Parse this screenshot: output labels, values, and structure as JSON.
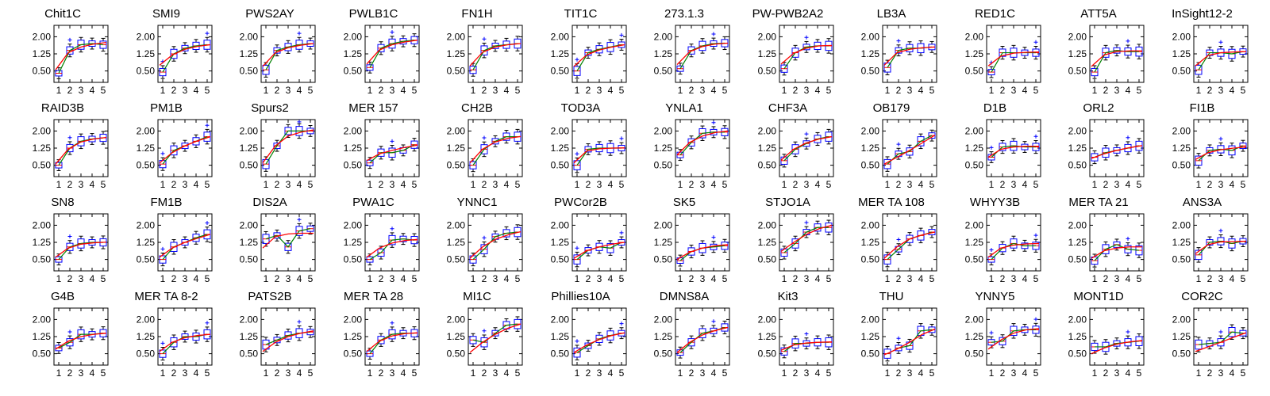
{
  "chart_data": {
    "type": "box",
    "ylim": [
      0.0,
      2.5
    ],
    "yticks": [
      "0.50",
      "1.25",
      "2.00"
    ],
    "ytick_values": [
      0.5,
      1.25,
      2.0
    ],
    "xticks": [
      "1",
      "2",
      "3",
      "4",
      "5"
    ],
    "colors": {
      "box": "#0000ff",
      "median": "#ff0000",
      "green_line": "#008000",
      "red_fit": "#ff0000",
      "whisker": "#000000",
      "outlier": "#0000ff"
    },
    "panels": [
      {
        "title": "Chit1C",
        "medians": [
          0.4,
          1.4,
          1.65,
          1.7,
          1.65
        ],
        "fit": [
          0.55,
          1.3,
          1.55,
          1.68,
          1.75
        ]
      },
      {
        "title": "SMI9",
        "medians": [
          0.45,
          1.25,
          1.5,
          1.6,
          1.65
        ],
        "fit": [
          0.75,
          1.2,
          1.45,
          1.58,
          1.65
        ]
      },
      {
        "title": "PWS2AY",
        "medians": [
          0.55,
          1.4,
          1.55,
          1.65,
          1.7
        ],
        "fit": [
          0.7,
          1.3,
          1.52,
          1.63,
          1.7
        ]
      },
      {
        "title": "PWLB1C",
        "medians": [
          0.65,
          1.5,
          1.7,
          1.8,
          1.85
        ],
        "fit": [
          0.8,
          1.42,
          1.65,
          1.77,
          1.85
        ]
      },
      {
        "title": "FN1H",
        "medians": [
          0.55,
          1.4,
          1.6,
          1.65,
          1.7
        ],
        "fit": [
          0.72,
          1.32,
          1.55,
          1.65,
          1.7
        ]
      },
      {
        "title": "TIT1C",
        "medians": [
          0.5,
          1.3,
          1.45,
          1.55,
          1.65
        ],
        "fit": [
          0.7,
          1.2,
          1.42,
          1.55,
          1.65
        ]
      },
      {
        "title": "273.1.3",
        "medians": [
          0.6,
          1.4,
          1.6,
          1.7,
          1.72
        ],
        "fit": [
          0.78,
          1.35,
          1.57,
          1.68,
          1.72
        ]
      },
      {
        "title": "PW-PWB2A2",
        "medians": [
          0.6,
          1.3,
          1.55,
          1.6,
          1.6
        ],
        "fit": [
          0.8,
          1.28,
          1.5,
          1.6,
          1.62
        ]
      },
      {
        "title": "LB3A",
        "medians": [
          0.65,
          1.4,
          1.5,
          1.5,
          1.55
        ],
        "fit": [
          0.75,
          1.3,
          1.45,
          1.52,
          1.55
        ]
      },
      {
        "title": "RED1C",
        "medians": [
          0.45,
          1.3,
          1.3,
          1.3,
          1.3
        ],
        "fit": [
          0.72,
          1.15,
          1.28,
          1.32,
          1.33
        ]
      },
      {
        "title": "ATT5A",
        "medians": [
          0.45,
          1.3,
          1.4,
          1.35,
          1.35
        ],
        "fit": [
          0.7,
          1.2,
          1.35,
          1.38,
          1.38
        ]
      },
      {
        "title": "InSight12-2",
        "medians": [
          0.55,
          1.3,
          1.3,
          1.25,
          1.35
        ],
        "fit": [
          0.72,
          1.18,
          1.3,
          1.33,
          1.35
        ]
      },
      {
        "title": "RAID3B",
        "medians": [
          0.5,
          1.25,
          1.55,
          1.65,
          1.7
        ],
        "fit": [
          0.55,
          1.2,
          1.52,
          1.65,
          1.72
        ]
      },
      {
        "title": "PM1B",
        "medians": [
          0.55,
          1.15,
          1.35,
          1.55,
          1.75
        ],
        "fit": [
          0.6,
          1.05,
          1.35,
          1.57,
          1.75
        ]
      },
      {
        "title": "Spurs2",
        "medians": [
          0.55,
          1.35,
          2.0,
          2.0,
          2.0
        ],
        "fit": [
          0.6,
          1.35,
          1.78,
          1.95,
          2.05
        ]
      },
      {
        "title": "MER 157",
        "medians": [
          0.6,
          1.05,
          1.05,
          1.15,
          1.4
        ],
        "fit": [
          0.7,
          1.0,
          1.15,
          1.28,
          1.38
        ]
      },
      {
        "title": "CH2B",
        "medians": [
          0.5,
          1.2,
          1.55,
          1.75,
          1.75
        ],
        "fit": [
          0.6,
          1.2,
          1.52,
          1.68,
          1.76
        ]
      },
      {
        "title": "TOD3A",
        "medians": [
          0.5,
          1.2,
          1.25,
          1.25,
          1.25
        ],
        "fit": [
          0.6,
          1.12,
          1.22,
          1.25,
          1.26
        ]
      },
      {
        "title": "YNLA1",
        "medians": [
          0.95,
          1.5,
          1.9,
          1.95,
          1.95
        ],
        "fit": [
          0.95,
          1.5,
          1.78,
          1.93,
          2.0
        ]
      },
      {
        "title": "CHF3A",
        "medians": [
          0.7,
          1.2,
          1.45,
          1.65,
          1.75
        ],
        "fit": [
          0.72,
          1.2,
          1.48,
          1.65,
          1.75
        ]
      },
      {
        "title": "OB179",
        "medians": [
          0.55,
          1.0,
          1.1,
          1.55,
          1.8
        ],
        "fit": [
          0.55,
          0.85,
          1.15,
          1.48,
          1.82
        ]
      },
      {
        "title": "D1B",
        "medians": [
          0.85,
          1.3,
          1.35,
          1.3,
          1.3
        ],
        "fit": [
          0.85,
          1.2,
          1.3,
          1.33,
          1.33
        ]
      },
      {
        "title": "ORL2",
        "medians": [
          0.85,
          1.05,
          1.15,
          1.25,
          1.35
        ],
        "fit": [
          0.8,
          1.0,
          1.15,
          1.27,
          1.36
        ]
      },
      {
        "title": "FI1B",
        "medians": [
          0.7,
          1.15,
          1.2,
          1.15,
          1.35
        ],
        "fit": [
          0.75,
          1.05,
          1.18,
          1.25,
          1.3
        ]
      },
      {
        "title": "SN8",
        "medians": [
          0.5,
          1.05,
          1.2,
          1.25,
          1.25
        ],
        "fit": [
          0.6,
          1.0,
          1.17,
          1.23,
          1.26
        ]
      },
      {
        "title": "FM1B",
        "medians": [
          0.5,
          1.05,
          1.25,
          1.45,
          1.6
        ],
        "fit": [
          0.6,
          1.0,
          1.25,
          1.43,
          1.6
        ]
      },
      {
        "title": "DIS2A",
        "medians": [
          1.4,
          1.55,
          1.05,
          1.75,
          1.85
        ],
        "fit": [
          1.0,
          1.5,
          1.62,
          1.65,
          1.65
        ]
      },
      {
        "title": "PWA1C",
        "medians": [
          0.5,
          0.8,
          1.35,
          1.4,
          1.35
        ],
        "fit": [
          0.6,
          1.0,
          1.22,
          1.33,
          1.38
        ]
      },
      {
        "title": "YNNC1",
        "medians": [
          0.5,
          0.95,
          1.5,
          1.65,
          1.7
        ],
        "fit": [
          0.55,
          1.05,
          1.38,
          1.58,
          1.72
        ]
      },
      {
        "title": "PWCor2B",
        "medians": [
          0.5,
          0.9,
          1.05,
          1.0,
          1.25
        ],
        "fit": [
          0.55,
          0.88,
          1.05,
          1.17,
          1.25
        ]
      },
      {
        "title": "SK5",
        "medians": [
          0.45,
          0.85,
          1.0,
          1.05,
          1.1
        ],
        "fit": [
          0.5,
          0.82,
          1.0,
          1.1,
          1.15
        ]
      },
      {
        "title": "STJO1A",
        "medians": [
          0.8,
          1.2,
          1.7,
          1.9,
          1.9
        ],
        "fit": [
          0.85,
          1.25,
          1.6,
          1.85,
          2.0
        ]
      },
      {
        "title": "MER TA 108",
        "medians": [
          0.5,
          0.95,
          1.4,
          1.55,
          1.7
        ],
        "fit": [
          0.55,
          1.05,
          1.4,
          1.58,
          1.7
        ]
      },
      {
        "title": "WHYY3B",
        "medians": [
          0.5,
          1.0,
          1.2,
          1.1,
          1.1
        ],
        "fit": [
          0.6,
          1.0,
          1.13,
          1.18,
          1.2
        ]
      },
      {
        "title": "MER TA 21",
        "medians": [
          0.45,
          0.95,
          1.15,
          0.95,
          0.9
        ],
        "fit": [
          0.55,
          0.88,
          1.0,
          1.05,
          1.05
        ]
      },
      {
        "title": "ANS3A",
        "medians": [
          0.7,
          1.25,
          1.3,
          1.2,
          1.3
        ],
        "fit": [
          0.75,
          1.15,
          1.27,
          1.28,
          1.3
        ]
      },
      {
        "title": "G4B",
        "medians": [
          0.75,
          1.0,
          1.35,
          1.35,
          1.4
        ],
        "fit": [
          0.7,
          1.05,
          1.25,
          1.35,
          1.4
        ]
      },
      {
        "title": "MER TA 8-2",
        "medians": [
          0.5,
          1.0,
          1.25,
          1.25,
          1.35
        ],
        "fit": [
          0.6,
          1.0,
          1.2,
          1.3,
          1.35
        ]
      },
      {
        "title": "PATS2B",
        "medians": [
          0.9,
          1.1,
          1.3,
          1.4,
          1.45
        ],
        "fit": [
          0.6,
          1.0,
          1.25,
          1.4,
          1.5
        ]
      },
      {
        "title": "MER TA 28",
        "medians": [
          0.5,
          1.1,
          1.35,
          1.4,
          1.4
        ],
        "fit": [
          0.6,
          1.05,
          1.28,
          1.38,
          1.42
        ]
      },
      {
        "title": "MI1C",
        "medians": [
          1.1,
          1.0,
          1.4,
          1.75,
          1.8
        ],
        "fit": [
          0.55,
          1.0,
          1.35,
          1.62,
          1.8
        ]
      },
      {
        "title": "Phillies10A",
        "medians": [
          0.55,
          0.85,
          1.15,
          1.3,
          1.4
        ],
        "fit": [
          0.55,
          0.88,
          1.12,
          1.3,
          1.42
        ]
      },
      {
        "title": "DMNS8A",
        "medians": [
          0.55,
          1.0,
          1.4,
          1.5,
          1.65
        ],
        "fit": [
          0.55,
          1.0,
          1.32,
          1.52,
          1.65
        ]
      },
      {
        "title": "Kit3",
        "medians": [
          0.6,
          0.95,
          0.95,
          1.0,
          1.0
        ],
        "fit": [
          0.65,
          0.88,
          0.97,
          1.0,
          1.02
        ]
      },
      {
        "title": "THU",
        "medians": [
          0.5,
          0.75,
          0.85,
          1.5,
          1.55
        ],
        "fit": [
          0.45,
          0.7,
          1.0,
          1.35,
          1.58
        ]
      },
      {
        "title": "YNNY5",
        "medians": [
          1.0,
          1.05,
          1.5,
          1.55,
          1.55
        ],
        "fit": [
          0.7,
          1.1,
          1.4,
          1.55,
          1.6
        ]
      },
      {
        "title": "MONT1D",
        "medians": [
          0.8,
          0.8,
          0.95,
          1.0,
          1.05
        ],
        "fit": [
          0.5,
          0.75,
          0.92,
          1.02,
          1.08
        ]
      },
      {
        "title": "COR2C",
        "medians": [
          0.9,
          0.95,
          1.0,
          1.45,
          1.4
        ],
        "fit": [
          0.6,
          0.8,
          1.0,
          1.22,
          1.42
        ]
      }
    ]
  }
}
